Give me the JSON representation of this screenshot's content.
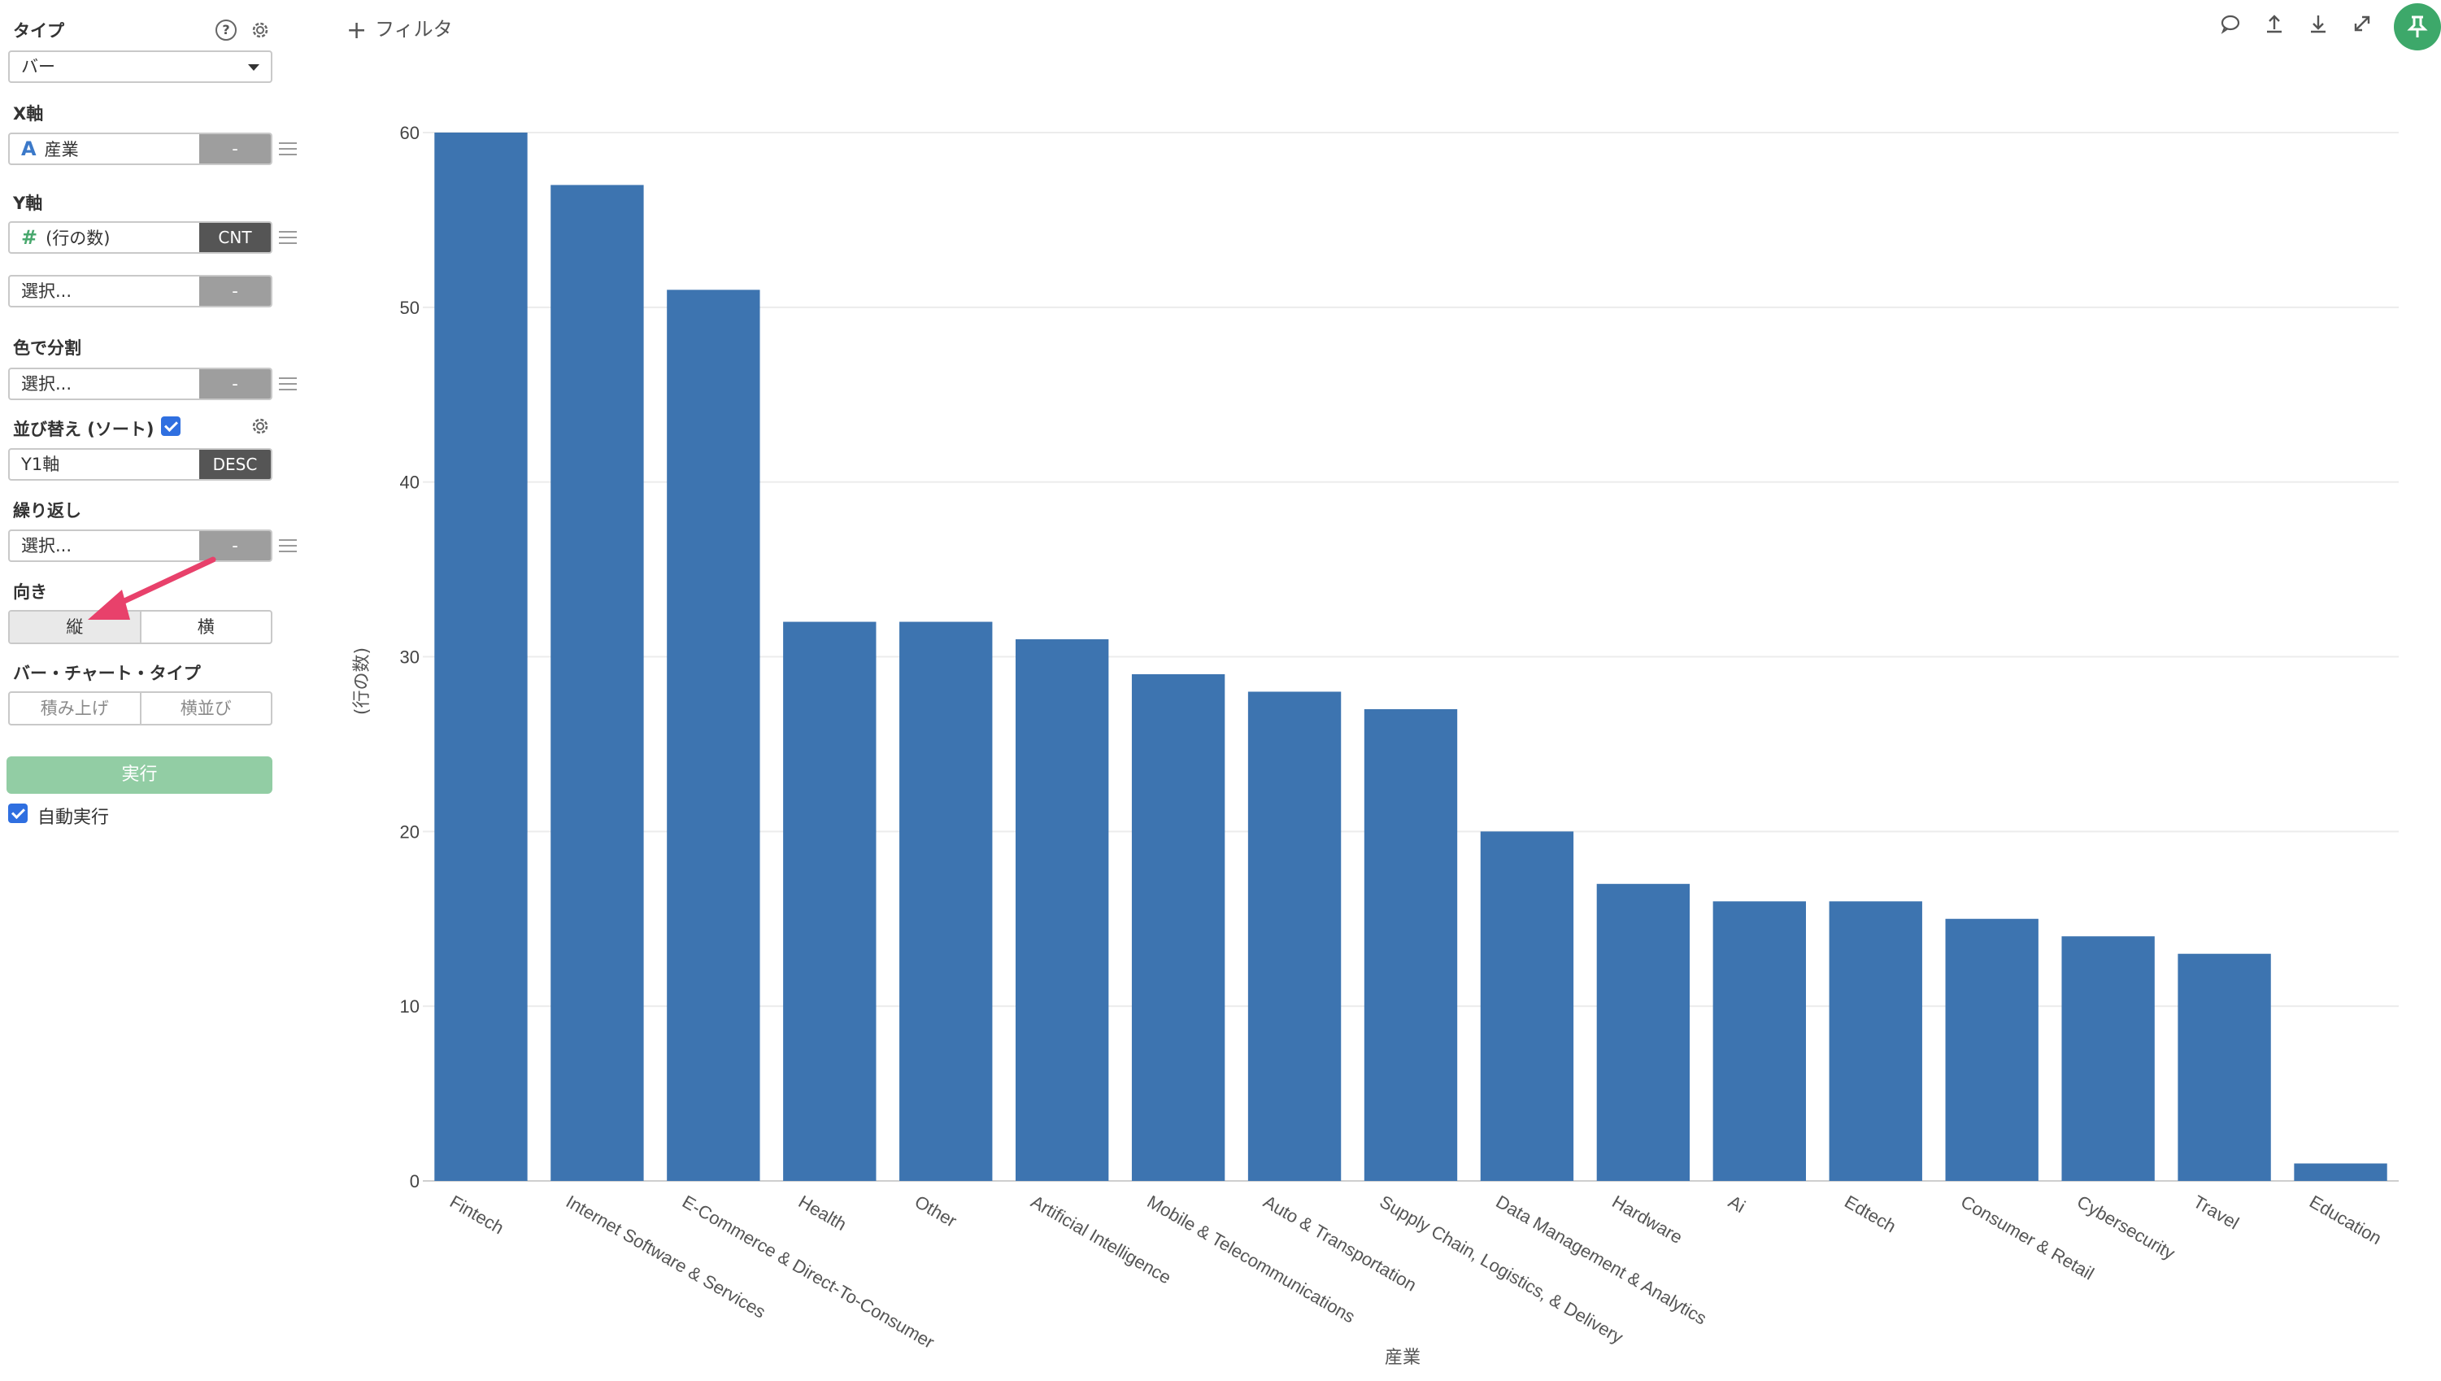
{
  "panel": {
    "type_label": "タイプ",
    "type_value": "バー",
    "help_glyph": "?",
    "x_axis_label": "X軸",
    "x_field": {
      "glyph": "A",
      "value": "産業",
      "button": "-"
    },
    "y_axis_label": "Y軸",
    "y_field": {
      "glyph": "#",
      "value": "(行の数)",
      "button": "CNT"
    },
    "y_field2": {
      "value": "選択...",
      "button": "-"
    },
    "color_label": "色で分割",
    "color_field": {
      "value": "選択...",
      "button": "-"
    },
    "sort_label": "並び替え (ソート)",
    "sort_checked": true,
    "sort_field": {
      "value": "Y1軸",
      "button": "DESC"
    },
    "repeat_label": "繰り返し",
    "repeat_field": {
      "value": "選択...",
      "button": "-"
    },
    "orientation_label": "向き",
    "orientation_options": [
      "縦",
      "横"
    ],
    "orientation_selected": "縦",
    "bar_type_label": "バー・チャート・タイプ",
    "bar_type_options": [
      "積み上げ",
      "横並び"
    ],
    "run_label": "実行",
    "auto_run_label": "自動実行",
    "auto_run_checked": true
  },
  "toolbar": {
    "filter_plus": "+",
    "filter_label": "フィルタ",
    "icons": [
      "comment-icon",
      "upload-icon",
      "download-icon",
      "expand-icon",
      "pin-icon"
    ]
  },
  "colors": {
    "bar": "#3d74b0",
    "accent_green": "#3da86a",
    "run_button": "#92cda4",
    "annotation_arrow": "#e8416b",
    "checkbox": "#2f6fe0"
  },
  "chart_data": {
    "type": "bar",
    "categories": [
      "Fintech",
      "Internet Software & Services",
      "E-Commerce & Direct-To-Consumer",
      "Health",
      "Other",
      "Artificial Intelligence",
      "Mobile & Telecommunications",
      "Auto & Transportation",
      "Supply Chain, Logistics, & Delivery",
      "Data Management & Analytics",
      "Hardware",
      "Ai",
      "Edtech",
      "Consumer & Retail",
      "Cybersecurity",
      "Travel",
      "Education"
    ],
    "values": [
      60,
      57,
      51,
      32,
      32,
      31,
      29,
      28,
      27,
      20,
      17,
      16,
      16,
      15,
      14,
      13,
      1
    ],
    "xlabel": "産業",
    "ylabel": "(行の数)",
    "ylim": [
      0,
      60
    ],
    "yticks": [
      "0",
      "10",
      "20",
      "30",
      "40",
      "50",
      "60"
    ],
    "grid": true,
    "sorted": "desc"
  }
}
